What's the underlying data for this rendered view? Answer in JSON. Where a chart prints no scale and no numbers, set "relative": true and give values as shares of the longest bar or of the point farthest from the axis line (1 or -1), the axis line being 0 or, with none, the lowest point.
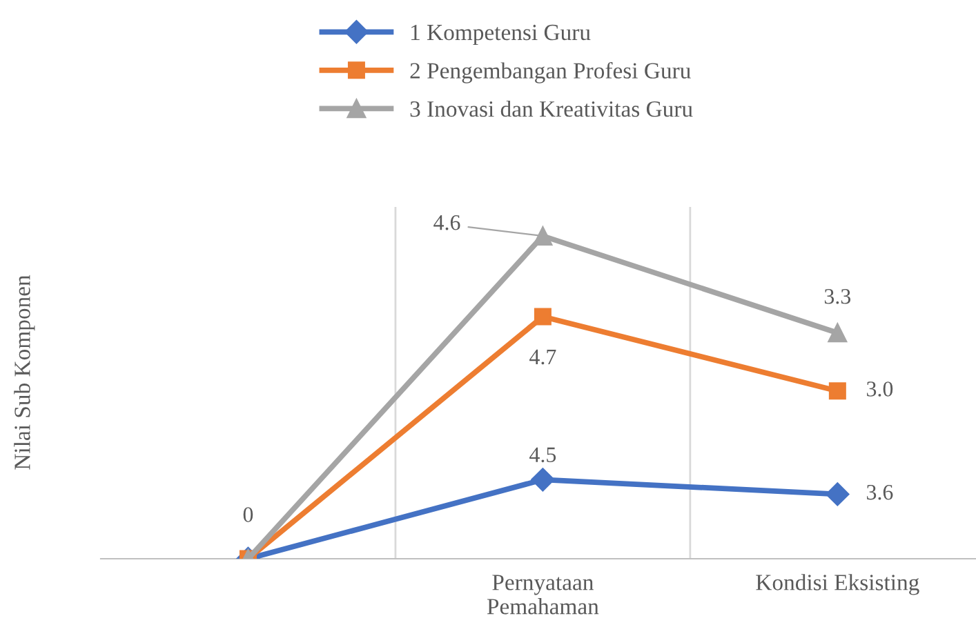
{
  "chart_data": {
    "type": "line",
    "ylabel": "Nilai Sub Komponen",
    "relative": true,
    "categories": [
      null,
      "Pernyataan\nPemahaman",
      "Kondisi Eksisting"
    ],
    "series": [
      {
        "name": "1 Kompetensi Guru",
        "color": "#4472c4",
        "marker": "diamond",
        "values": [
          0,
          0.245,
          0.2
        ]
      },
      {
        "name": "2 Pengembangan Profesi Guru",
        "color": "#ed7d31",
        "marker": "square",
        "values": [
          0,
          0.75,
          0.52
        ]
      },
      {
        "name": "3 Inovasi dan Kreativitas Guru",
        "color": "#a5a5a5",
        "marker": "triangle",
        "values": [
          0,
          1,
          0.7
        ]
      }
    ],
    "annotations": [
      "0",
      "4.6",
      "3.3",
      "4.7",
      "3.0",
      "4.5",
      "3.6"
    ],
    "grid": "x",
    "legend": "top",
    "line_style": "solid"
  }
}
